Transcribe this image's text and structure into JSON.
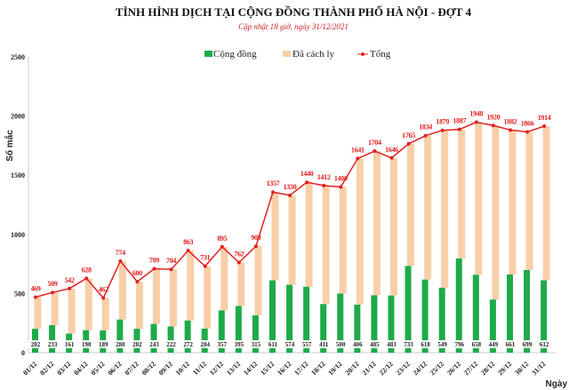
{
  "chart_data": {
    "type": "bar",
    "title": "TÌNH HÌNH DỊCH TẠI CỘNG ĐỒNG THÀNH PHỐ HÀ NỘI - ĐỢT 4",
    "subtitle": "Cập nhật 18 giờ, ngày 31/12/2021",
    "xlabel": "Ngày",
    "ylabel": "Số mắc",
    "ylim": [
      0,
      2500
    ],
    "yticks": [
      0,
      500,
      1000,
      1500,
      2000,
      2500
    ],
    "grid": false,
    "legend": "top",
    "categories": [
      "01/12",
      "02/12",
      "03/12",
      "04/12",
      "05/12",
      "06/12",
      "07/12",
      "08/12",
      "09/12",
      "10/12",
      "11/12",
      "12/12",
      "13/12",
      "14/12",
      "15/12",
      "16/12",
      "17/12",
      "18/12",
      "19/12",
      "20/12",
      "21/12",
      "22/12",
      "23/12",
      "24/12",
      "25/12",
      "26/12",
      "27/12",
      "28/12",
      "29/12",
      "30/12",
      "31/12"
    ],
    "series": [
      {
        "name": "Cộng đồng",
        "type": "bar",
        "color": "#1faa4a",
        "values": [
          202,
          233,
          161,
          190,
          189,
          280,
          202,
          243,
          222,
          272,
          204,
          357,
          395,
          315,
          611,
          574,
          557,
          411,
          500,
          406,
          485,
          483,
          733,
          618,
          549,
          796,
          658,
          449,
          661,
          699,
          612
        ]
      },
      {
        "name": "Đã cách ly",
        "type": "bar",
        "color": "#f8cfa8",
        "values": [
          267,
          276,
          381,
          438,
          273,
          494,
          398,
          466,
          482,
          591,
          527,
          538,
          367,
          585,
          746,
          756,
          883,
          1001,
          900,
          1235,
          1219,
          1163,
          1032,
          1216,
          1330,
          1091,
          1290,
          1471,
          1221,
          1167,
          1302
        ]
      },
      {
        "name": "Tổng",
        "type": "line",
        "color": "#e02020",
        "values": [
          469,
          509,
          542,
          628,
          462,
          774,
          600,
          709,
          704,
          863,
          731,
          895,
          762,
          900,
          1357,
          1330,
          1440,
          1412,
          1400,
          1641,
          1704,
          1646,
          1765,
          1834,
          1879,
          1887,
          1948,
          1920,
          1882,
          1866,
          1914
        ]
      }
    ]
  }
}
